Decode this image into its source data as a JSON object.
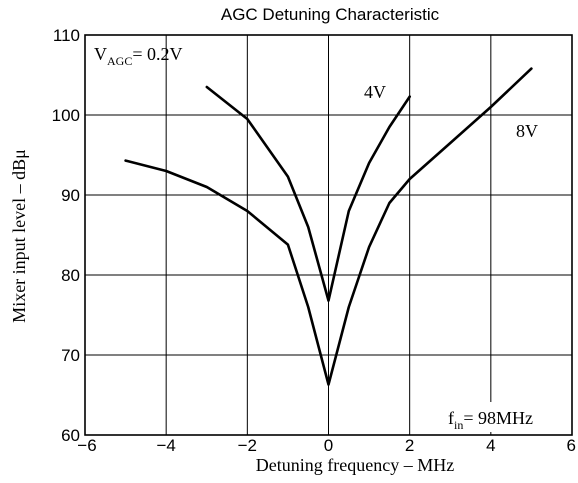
{
  "chart_data": {
    "type": "line",
    "title": "AGC Detuning Characteristic",
    "xlabel": "Detuning frequency  –  MHz",
    "ylabel": "Mixer input level  –  dBμ",
    "xlim": [
      -6,
      6
    ],
    "ylim": [
      60,
      110
    ],
    "xticks": [
      "−6",
      "−4",
      "−2",
      "0",
      "2",
      "4",
      "6"
    ],
    "yticks": [
      "60",
      "70",
      "80",
      "90",
      "100",
      "110"
    ],
    "grid": true,
    "annotations": {
      "vagc_main": "V",
      "vagc_sub": "AGC",
      "vagc_value": "= 0.2V",
      "label_4v": "4V",
      "label_8v": "8V",
      "fin_main": "f",
      "fin_sub": "in",
      "fin_value": "= 98MHz"
    },
    "series": [
      {
        "name": "0.2V",
        "points": [
          [
            -5,
            94.3
          ],
          [
            -4,
            93.0
          ],
          [
            -3,
            91.0
          ],
          [
            -2,
            88.0
          ],
          [
            -1,
            83.8
          ],
          [
            -0.5,
            76.0
          ],
          [
            0,
            66.3
          ],
          [
            0.5,
            76.0
          ],
          [
            1,
            83.5
          ],
          [
            1.5,
            89.0
          ],
          [
            2,
            92.0
          ],
          [
            3,
            96.5
          ],
          [
            4,
            101.0
          ],
          [
            5,
            105.8
          ]
        ]
      },
      {
        "name": "4V",
        "points": [
          [
            -3,
            103.5
          ],
          [
            -2,
            99.5
          ],
          [
            -1,
            92.3
          ],
          [
            -0.5,
            86.0
          ],
          [
            0,
            76.8
          ],
          [
            0.5,
            88.0
          ],
          [
            1,
            94.0
          ],
          [
            1.5,
            98.5
          ],
          [
            2,
            102.3
          ]
        ]
      }
    ]
  }
}
